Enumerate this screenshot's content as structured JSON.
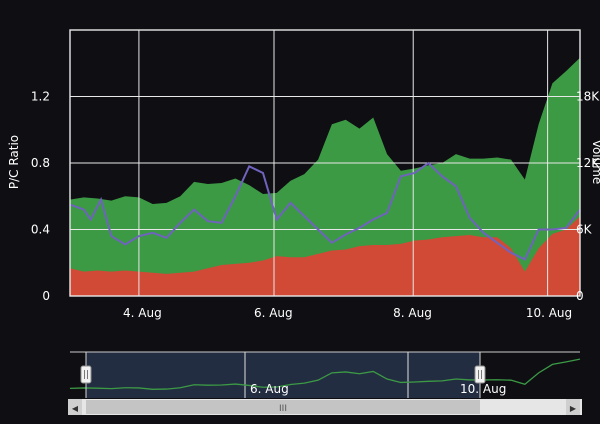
{
  "chart_data": {
    "type": "area",
    "title": "",
    "x_ticks": [
      "4. Aug",
      "6. Aug",
      "8. Aug",
      "10. Aug"
    ],
    "y_left": {
      "label": "P/C Ratio",
      "ticks": [
        "0",
        "0.4",
        "0.8",
        "1.2"
      ],
      "range": [
        0,
        1.6
      ]
    },
    "y_right": {
      "label": "Volume",
      "ticks": [
        "0",
        "6K",
        "12K",
        "18K"
      ],
      "range": [
        0,
        24000
      ]
    },
    "grid": true,
    "series": [
      {
        "kind": "area",
        "axis": "right",
        "color": "#d04a36",
        "x": [
          3.0,
          3.2,
          3.4,
          3.6,
          3.8,
          4.0,
          4.2,
          4.4,
          4.6,
          4.8,
          5.0,
          5.2,
          5.4,
          5.6,
          5.8,
          6.0,
          6.2,
          6.4,
          6.6,
          6.8,
          7.0,
          7.2,
          7.4,
          7.6,
          7.8,
          8.0,
          8.2,
          8.4,
          8.6,
          8.8,
          9.0,
          9.2,
          9.4,
          9.6,
          9.8,
          10.0,
          10.2,
          10.4
        ],
        "values": [
          2500,
          2200,
          2300,
          2200,
          2300,
          2200,
          2100,
          2000,
          2100,
          2200,
          2500,
          2800,
          2900,
          3000,
          3200,
          3600,
          3500,
          3500,
          3800,
          4100,
          4200,
          4500,
          4600,
          4600,
          4700,
          5000,
          5100,
          5300,
          5400,
          5500,
          5300,
          5300,
          4300,
          2200,
          4300,
          5600,
          6000,
          7200
        ]
      },
      {
        "kind": "area",
        "axis": "right",
        "color": "#3c9a45",
        "x": [
          3.0,
          3.2,
          3.4,
          3.6,
          3.8,
          4.0,
          4.2,
          4.4,
          4.6,
          4.8,
          5.0,
          5.2,
          5.4,
          5.6,
          5.8,
          6.0,
          6.2,
          6.4,
          6.6,
          6.8,
          7.0,
          7.2,
          7.4,
          7.6,
          7.8,
          8.0,
          8.2,
          8.4,
          8.6,
          8.8,
          9.0,
          9.2,
          9.4,
          9.6,
          9.8,
          10.0,
          10.2,
          10.4
        ],
        "values": [
          8700,
          8900,
          8800,
          8600,
          9000,
          8900,
          8300,
          8400,
          9000,
          10300,
          10100,
          10200,
          10600,
          10000,
          9200,
          9300,
          10400,
          11000,
          12300,
          15500,
          15900,
          15100,
          16100,
          12800,
          11300,
          11500,
          11800,
          12000,
          12800,
          12400,
          12400,
          12500,
          12300,
          10500,
          15500,
          19200,
          20300,
          21500
        ]
      },
      {
        "kind": "line",
        "axis": "left",
        "color": "#6f63bd",
        "x": [
          3.0,
          3.2,
          3.3,
          3.45,
          3.6,
          3.8,
          4.0,
          4.2,
          4.4,
          4.6,
          4.8,
          5.0,
          5.2,
          5.4,
          5.6,
          5.8,
          6.0,
          6.2,
          6.4,
          6.6,
          6.8,
          7.0,
          7.2,
          7.4,
          7.6,
          7.8,
          8.0,
          8.2,
          8.4,
          8.6,
          8.8,
          9.0,
          9.2,
          9.4,
          9.6,
          9.8,
          10.0,
          10.2,
          10.4
        ],
        "values": [
          0.55,
          0.52,
          0.46,
          0.58,
          0.36,
          0.31,
          0.36,
          0.38,
          0.35,
          0.44,
          0.52,
          0.45,
          0.44,
          0.6,
          0.78,
          0.74,
          0.46,
          0.56,
          0.48,
          0.4,
          0.32,
          0.37,
          0.41,
          0.46,
          0.5,
          0.72,
          0.74,
          0.8,
          0.72,
          0.66,
          0.47,
          0.38,
          0.32,
          0.26,
          0.22,
          0.4,
          0.4,
          0.41,
          0.52
        ]
      }
    ],
    "navigator": {
      "labels": [
        "6. Aug",
        "10. Aug"
      ],
      "scrollbar_grip": "III",
      "left_arrow": "◀",
      "right_arrow": "▶"
    }
  }
}
